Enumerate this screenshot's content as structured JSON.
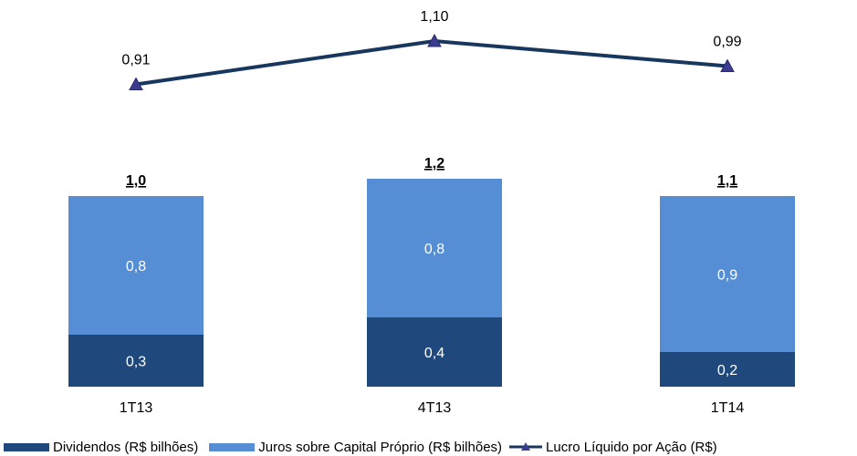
{
  "chart_data": {
    "type": "bar",
    "categories": [
      "1T13",
      "4T13",
      "1T14"
    ],
    "series": [
      {
        "name": "Dividendos (R$ bilhões)",
        "values": [
          0.3,
          0.4,
          0.2
        ],
        "labels": [
          "0,3",
          "0,4",
          "0,2"
        ]
      },
      {
        "name": "Juros sobre Capital Próprio (R$ bilhões)",
        "values": [
          0.8,
          0.8,
          0.9
        ],
        "labels": [
          "0,8",
          "0,8",
          "0,9"
        ]
      }
    ],
    "totals": [
      1.0,
      1.2,
      1.1
    ],
    "total_labels": [
      "1,0",
      "1,2",
      "1,1"
    ],
    "line_series": {
      "name": "Lucro Líquido por Ação (R$)",
      "values": [
        0.91,
        1.1,
        0.99
      ],
      "labels": [
        "0,91",
        "1,10",
        "0,99"
      ]
    },
    "colors": {
      "dividendos": "#1f497d",
      "juros": "#558ed5",
      "line": "#17375e",
      "marker": "#3b3b8f"
    },
    "legend_position": "bottom"
  }
}
